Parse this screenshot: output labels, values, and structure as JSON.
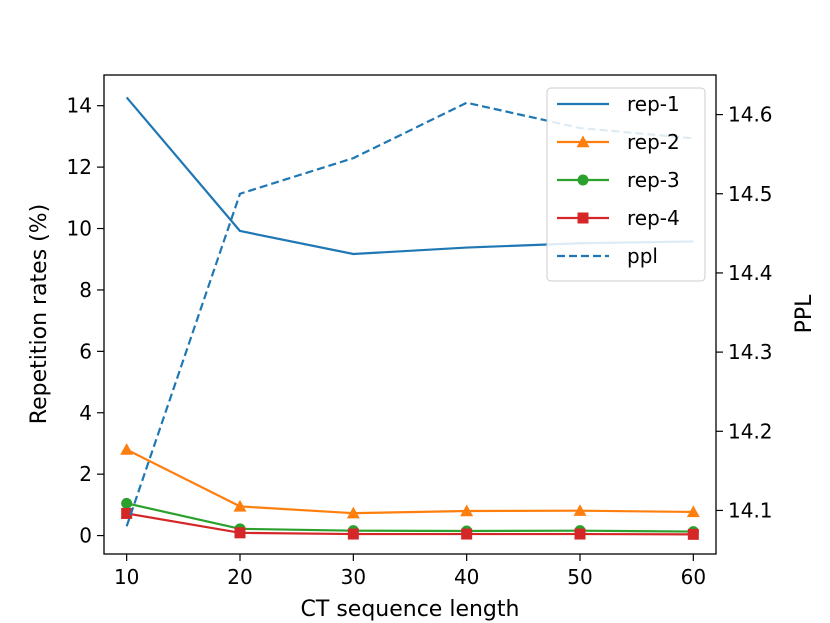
{
  "chart_data": {
    "type": "line",
    "x": [
      10,
      20,
      30,
      40,
      50,
      60
    ],
    "xlabel": "CT sequence length",
    "ylabel": "Repetition rates (%)",
    "y2label": "PPL",
    "xlim": [
      8,
      62
    ],
    "ylim": [
      -0.6,
      15
    ],
    "y2lim": [
      14.045,
      14.65
    ],
    "xticks": [
      "10",
      "20",
      "30",
      "40",
      "50",
      "60"
    ],
    "yticks": [
      "0",
      "2",
      "4",
      "6",
      "8",
      "10",
      "12",
      "14"
    ],
    "y2ticks": [
      "14.1",
      "14.2",
      "14.3",
      "14.4",
      "14.5",
      "14.6"
    ],
    "legend_position": "top-right",
    "series": [
      {
        "name": "rep-1",
        "axis": "left",
        "color": "#1f77b4",
        "marker": "none",
        "dash": "solid",
        "values": [
          14.27,
          9.92,
          9.17,
          9.38,
          9.52,
          9.58
        ]
      },
      {
        "name": "rep-2",
        "axis": "left",
        "color": "#ff7f0e",
        "marker": "triangle",
        "dash": "solid",
        "values": [
          2.8,
          0.95,
          0.73,
          0.8,
          0.81,
          0.77
        ]
      },
      {
        "name": "rep-3",
        "axis": "left",
        "color": "#2ca02c",
        "marker": "circle",
        "dash": "solid",
        "values": [
          1.05,
          0.22,
          0.16,
          0.15,
          0.16,
          0.13
        ]
      },
      {
        "name": "rep-4",
        "axis": "left",
        "color": "#d62728",
        "marker": "square",
        "dash": "solid",
        "values": [
          0.72,
          0.09,
          0.05,
          0.05,
          0.05,
          0.04
        ]
      },
      {
        "name": "ppl",
        "axis": "right",
        "color": "#1f77b4",
        "marker": "none",
        "dash": "dashed",
        "values": [
          14.08,
          14.5,
          14.545,
          14.615,
          14.583,
          14.57
        ]
      }
    ]
  }
}
